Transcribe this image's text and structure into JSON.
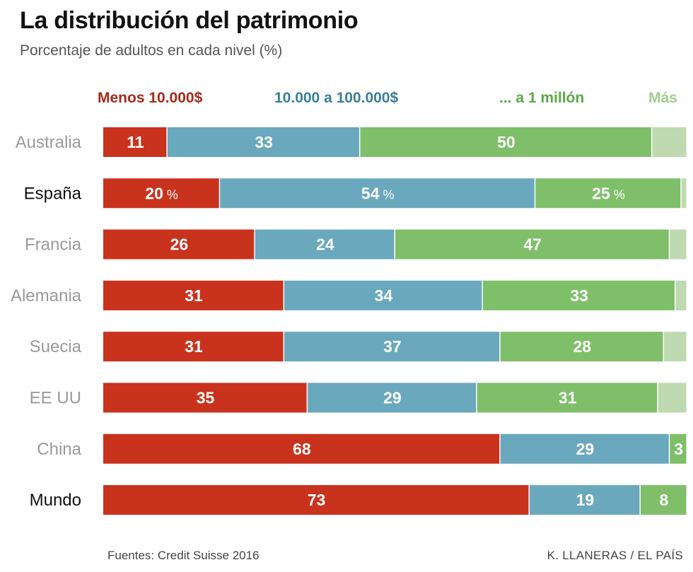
{
  "chart_data": {
    "type": "bar",
    "orientation": "horizontal",
    "stacked": true,
    "title": "La distribución del patrimonio",
    "subtitle": "Porcentaje de adultos en cada nivel (%)",
    "categories": [
      "Australia",
      "España",
      "Francia",
      "Alemania",
      "Suecia",
      "EE UU",
      "China",
      "Mundo"
    ],
    "highlighted_categories": [
      "España",
      "Mundo"
    ],
    "percent_label_category": "España",
    "percent_suffix": "%",
    "series": [
      {
        "name": "Menos 10.000$",
        "color": "#c9321d",
        "values": [
          11,
          20,
          26,
          31,
          31,
          35,
          68,
          73
        ]
      },
      {
        "name": "10.000 a 100.000$",
        "color": "#6aa8bd",
        "values": [
          33,
          54,
          24,
          34,
          37,
          29,
          29,
          19
        ]
      },
      {
        "name": "... a 1 millón",
        "color": "#7fbf6a",
        "values": [
          50,
          25,
          47,
          33,
          28,
          31,
          3,
          8
        ]
      },
      {
        "name": "Más",
        "color": "#bfd9b0",
        "values": [
          6,
          1,
          3,
          2,
          4,
          5,
          0,
          0.4
        ]
      }
    ],
    "legend_text_colors": [
      "#a52a1a",
      "#3a7f98",
      "#5aa846",
      "#9fcf8c"
    ],
    "xlim": [
      0,
      100
    ],
    "source": "Fuentes: Credit Suisse 2016",
    "credit": "K. LLANERAS  /  EL PAÍS"
  }
}
